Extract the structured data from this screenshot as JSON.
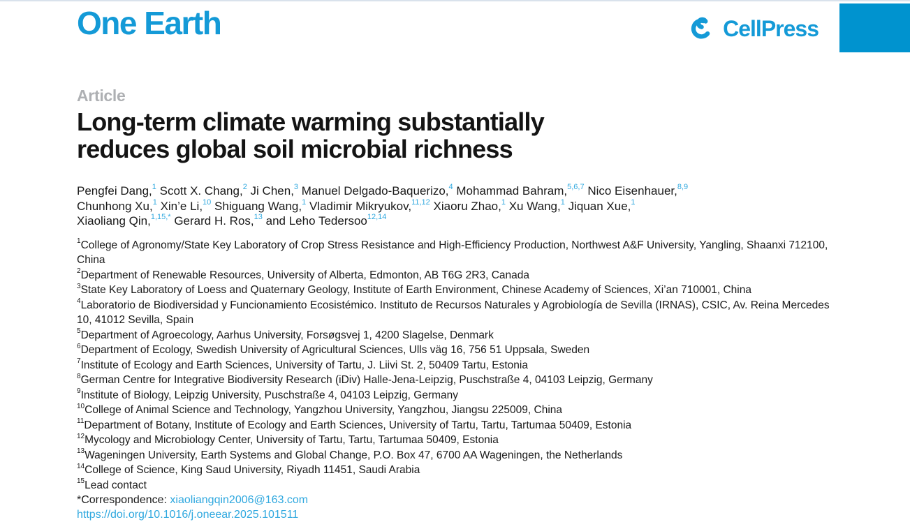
{
  "theme": {
    "accent": "#149ad7",
    "corner_box": "#0093cf",
    "link": "#2fa8df",
    "kicker_gray": "#aeb0b3",
    "top_rule": "#d9e2ec"
  },
  "icons": {
    "publisher_mark": "cellpress-swirl-icon"
  },
  "masthead": {
    "journal": "One Earth",
    "publisher": "CellPress"
  },
  "article": {
    "kicker": "Article",
    "title_lines": [
      "Long-term climate warming substantially",
      "reduces global soil microbial richness"
    ],
    "author_lines": [
      [
        {
          "name": "Pengfei Dang,",
          "sup": "1"
        },
        {
          "name": "Scott X. Chang,",
          "sup": "2"
        },
        {
          "name": "Ji Chen,",
          "sup": "3"
        },
        {
          "name": "Manuel Delgado-Baquerizo,",
          "sup": "4"
        },
        {
          "name": "Mohammad Bahram,",
          "sup": "5,6,7"
        },
        {
          "name": "Nico Eisenhauer,",
          "sup": "8,9"
        }
      ],
      [
        {
          "name": "Chunhong Xu,",
          "sup": "1"
        },
        {
          "name": "Xin’e Li,",
          "sup": "10"
        },
        {
          "name": "Shiguang Wang,",
          "sup": "1"
        },
        {
          "name": "Vladimir Mikryukov,",
          "sup": "11,12"
        },
        {
          "name": "Xiaoru Zhao,",
          "sup": "1"
        },
        {
          "name": "Xu Wang,",
          "sup": "1"
        },
        {
          "name": "Jiquan Xue,",
          "sup": "1"
        }
      ],
      [
        {
          "name": "Xiaoliang Qin,",
          "sup": "1,15,*"
        },
        {
          "name": "Gerard H. Ros,",
          "sup": "13"
        },
        {
          "name": "and Leho Tedersoo",
          "sup": "12,14"
        }
      ]
    ],
    "affiliations": [
      {
        "sup": "1",
        "text": "College of Agronomy/State Key Laboratory of Crop Stress Resistance and High-Efficiency Production, Northwest A&F University, Yangling, Shaanxi 712100, China"
      },
      {
        "sup": "2",
        "text": "Department of Renewable Resources, University of Alberta, Edmonton, AB T6G 2R3, Canada"
      },
      {
        "sup": "3",
        "text": "State Key Laboratory of Loess and Quaternary Geology, Institute of Earth Environment, Chinese Academy of Sciences, Xi’an 710001, China"
      },
      {
        "sup": "4",
        "text": "Laboratorio de Biodiversidad y Funcionamiento Ecosistémico. Instituto de Recursos Naturales y Agrobiología de Sevilla (IRNAS), CSIC, Av. Reina Mercedes 10, 41012 Sevilla, Spain"
      },
      {
        "sup": "5",
        "text": "Department of Agroecology, Aarhus University, Forsøgsvej 1, 4200 Slagelse, Denmark"
      },
      {
        "sup": "6",
        "text": "Department of Ecology, Swedish University of Agricultural Sciences, Ulls väg 16, 756 51 Uppsala, Sweden"
      },
      {
        "sup": "7",
        "text": "Institute of Ecology and Earth Sciences, University of Tartu, J. Liivi St. 2, 50409 Tartu, Estonia"
      },
      {
        "sup": "8",
        "text": "German Centre for Integrative Biodiversity Research (iDiv) Halle-Jena-Leipzig, Puschstraße 4, 04103 Leipzig, Germany"
      },
      {
        "sup": "9",
        "text": "Institute of Biology, Leipzig University, Puschstraße 4, 04103 Leipzig, Germany"
      },
      {
        "sup": "10",
        "text": "College of Animal Science and Technology, Yangzhou University, Yangzhou, Jiangsu 225009, China"
      },
      {
        "sup": "11",
        "text": "Department of Botany, Institute of Ecology and Earth Sciences, University of Tartu, Tartu, Tartumaa 50409, Estonia"
      },
      {
        "sup": "12",
        "text": "Mycology and Microbiology Center, University of Tartu, Tartu, Tartumaa 50409, Estonia"
      },
      {
        "sup": "13",
        "text": "Wageningen University, Earth Systems and Global Change, P.O. Box 47, 6700 AA Wageningen, the Netherlands"
      },
      {
        "sup": "14",
        "text": "College of Science, King Saud University, Riyadh 11451, Saudi Arabia"
      },
      {
        "sup": "15",
        "text": "Lead contact"
      }
    ],
    "correspondence": {
      "label": "*Correspondence: ",
      "email": "xiaoliangqin2006@163.com"
    },
    "doi": "https://doi.org/10.1016/j.oneear.2025.101511"
  }
}
